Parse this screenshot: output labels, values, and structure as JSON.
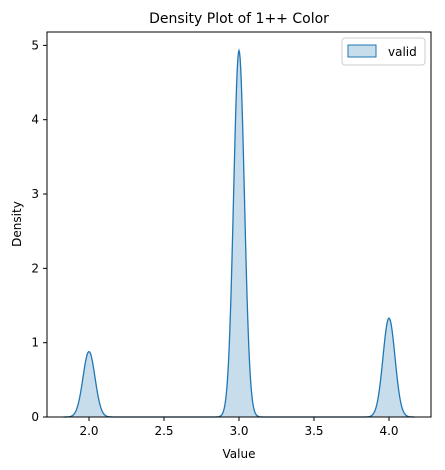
{
  "chart_data": {
    "type": "area",
    "title": "Density Plot of 1++ Color",
    "xlabel": "Value",
    "ylabel": "Density",
    "xlim": [
      1.72,
      4.28
    ],
    "ylim": [
      0,
      5.18
    ],
    "xticks": [
      2.0,
      2.5,
      3.0,
      3.5,
      4.0
    ],
    "xtick_labels": [
      "2.0",
      "2.5",
      "3.0",
      "3.5",
      "4.0"
    ],
    "yticks": [
      0,
      1,
      2,
      3,
      4,
      5
    ],
    "ytick_labels": [
      "0",
      "1",
      "2",
      "3",
      "4",
      "5"
    ],
    "grid": false,
    "legend": {
      "position": "top-right",
      "entries": [
        "valid"
      ]
    },
    "series": [
      {
        "name": "valid",
        "color": "#1f77b4",
        "fill_color": "#1f77b4",
        "fill_opacity": 0.25,
        "x_range": [
          1.83,
          4.17
        ],
        "peaks": [
          {
            "x": 2.0,
            "y": 0.88,
            "sigma": 0.04
          },
          {
            "x": 3.0,
            "y": 4.93,
            "sigma": 0.036
          },
          {
            "x": 4.0,
            "y": 1.33,
            "sigma": 0.04
          }
        ]
      }
    ]
  }
}
